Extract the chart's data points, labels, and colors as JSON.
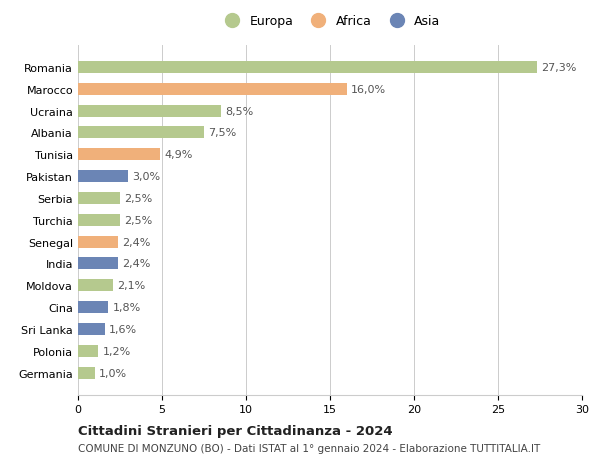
{
  "countries": [
    "Romania",
    "Marocco",
    "Ucraina",
    "Albania",
    "Tunisia",
    "Pakistan",
    "Serbia",
    "Turchia",
    "Senegal",
    "India",
    "Moldova",
    "Cina",
    "Sri Lanka",
    "Polonia",
    "Germania"
  ],
  "values": [
    27.3,
    16.0,
    8.5,
    7.5,
    4.9,
    3.0,
    2.5,
    2.5,
    2.4,
    2.4,
    2.1,
    1.8,
    1.6,
    1.2,
    1.0
  ],
  "labels": [
    "27,3%",
    "16,0%",
    "8,5%",
    "7,5%",
    "4,9%",
    "3,0%",
    "2,5%",
    "2,5%",
    "2,4%",
    "2,4%",
    "2,1%",
    "1,8%",
    "1,6%",
    "1,2%",
    "1,0%"
  ],
  "continents": [
    "Europa",
    "Africa",
    "Europa",
    "Europa",
    "Africa",
    "Asia",
    "Europa",
    "Europa",
    "Africa",
    "Asia",
    "Europa",
    "Asia",
    "Asia",
    "Europa",
    "Europa"
  ],
  "colors": {
    "Europa": "#b5c98e",
    "Africa": "#f0b07a",
    "Asia": "#6b85b5"
  },
  "xlim": [
    0,
    30
  ],
  "xticks": [
    0,
    5,
    10,
    15,
    20,
    25,
    30
  ],
  "title": "Cittadini Stranieri per Cittadinanza - 2024",
  "subtitle": "COMUNE DI MONZUNO (BO) - Dati ISTAT al 1° gennaio 2024 - Elaborazione TUTTITALIA.IT",
  "background_color": "#ffffff",
  "grid_color": "#cccccc",
  "bar_height": 0.55,
  "label_fontsize": 8,
  "ytick_fontsize": 8,
  "xtick_fontsize": 8,
  "legend_fontsize": 9,
  "title_fontsize": 9.5,
  "subtitle_fontsize": 7.5
}
